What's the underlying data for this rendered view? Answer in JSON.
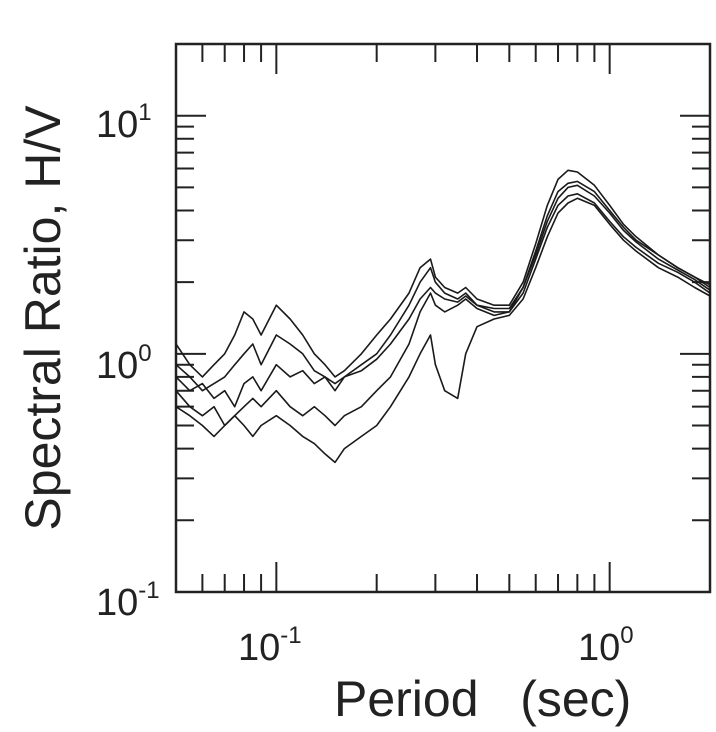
{
  "chart_data": {
    "type": "line",
    "title": "",
    "xlabel": "Period   (sec)",
    "ylabel": "Spectral Ratio, H/V",
    "xscale": "log",
    "yscale": "log",
    "xlim": [
      0.05,
      2.0
    ],
    "ylim": [
      0.1,
      20
    ],
    "grid": false,
    "legend": "none",
    "line_color": "#1a1a1a",
    "x_ticks": [
      {
        "base": "10",
        "exp": "-1"
      },
      {
        "base": "10",
        "exp": "0"
      }
    ],
    "y_ticks": [
      {
        "base": "10",
        "exp": "1"
      },
      {
        "base": "10",
        "exp": "0"
      },
      {
        "base": "10",
        "exp": "-1"
      }
    ],
    "x": [
      0.05,
      0.055,
      0.06,
      0.065,
      0.07,
      0.075,
      0.08,
      0.085,
      0.09,
      0.1,
      0.11,
      0.12,
      0.13,
      0.14,
      0.15,
      0.16,
      0.18,
      0.2,
      0.22,
      0.25,
      0.27,
      0.29,
      0.3,
      0.32,
      0.35,
      0.37,
      0.4,
      0.45,
      0.5,
      0.55,
      0.6,
      0.65,
      0.7,
      0.75,
      0.8,
      0.9,
      1.0,
      1.1,
      1.2,
      1.4,
      1.6,
      1.8,
      2.0
    ],
    "series": [
      {
        "values": [
          0.8,
          0.7,
          0.75,
          0.65,
          0.7,
          0.6,
          0.75,
          0.8,
          0.7,
          0.9,
          0.8,
          0.85,
          0.75,
          0.8,
          0.7,
          0.8,
          0.9,
          1.0,
          1.2,
          1.6,
          2.0,
          2.3,
          2.0,
          1.8,
          1.7,
          1.8,
          1.6,
          1.5,
          1.5,
          1.9,
          2.7,
          3.8,
          4.8,
          5.2,
          5.3,
          4.8,
          4.0,
          3.4,
          3.0,
          2.6,
          2.3,
          2.1,
          1.9
        ]
      },
      {
        "values": [
          0.7,
          0.6,
          0.55,
          0.6,
          0.5,
          0.55,
          0.6,
          0.65,
          0.6,
          0.7,
          0.6,
          0.55,
          0.6,
          0.55,
          0.5,
          0.55,
          0.6,
          0.7,
          0.8,
          1.1,
          1.5,
          1.8,
          1.6,
          1.5,
          1.6,
          1.7,
          1.55,
          1.45,
          1.5,
          1.8,
          2.5,
          3.4,
          4.2,
          4.6,
          4.7,
          4.3,
          3.6,
          3.1,
          2.8,
          2.4,
          2.2,
          2.0,
          1.8
        ]
      },
      {
        "values": [
          1.1,
          0.9,
          0.8,
          0.9,
          1.0,
          1.2,
          1.5,
          1.4,
          1.2,
          1.6,
          1.4,
          1.2,
          1.0,
          0.9,
          0.8,
          0.85,
          1.0,
          1.2,
          1.4,
          1.8,
          2.3,
          2.5,
          2.1,
          1.9,
          1.8,
          1.9,
          1.7,
          1.6,
          1.6,
          2.0,
          2.9,
          4.2,
          5.4,
          5.9,
          5.8,
          5.1,
          4.2,
          3.5,
          3.1,
          2.6,
          2.3,
          2.1,
          1.95
        ]
      },
      {
        "values": [
          0.6,
          0.55,
          0.5,
          0.45,
          0.5,
          0.55,
          0.5,
          0.45,
          0.5,
          0.55,
          0.5,
          0.45,
          0.42,
          0.38,
          0.35,
          0.4,
          0.45,
          0.5,
          0.6,
          0.8,
          1.0,
          1.2,
          0.9,
          0.7,
          0.65,
          1.0,
          1.3,
          1.4,
          1.45,
          1.7,
          2.3,
          3.1,
          3.9,
          4.3,
          4.5,
          4.2,
          3.5,
          3.0,
          2.7,
          2.3,
          2.1,
          1.9,
          1.75
        ]
      },
      {
        "values": [
          0.9,
          0.8,
          0.7,
          0.75,
          0.8,
          0.9,
          1.0,
          1.1,
          0.9,
          1.2,
          1.1,
          1.0,
          0.85,
          0.8,
          0.75,
          0.8,
          0.85,
          0.95,
          1.1,
          1.4,
          1.7,
          1.9,
          1.8,
          1.7,
          1.65,
          1.75,
          1.6,
          1.55,
          1.55,
          1.9,
          2.6,
          3.6,
          4.5,
          5.0,
          5.1,
          4.6,
          3.9,
          3.3,
          2.95,
          2.5,
          2.25,
          2.05,
          1.85
        ]
      }
    ]
  }
}
